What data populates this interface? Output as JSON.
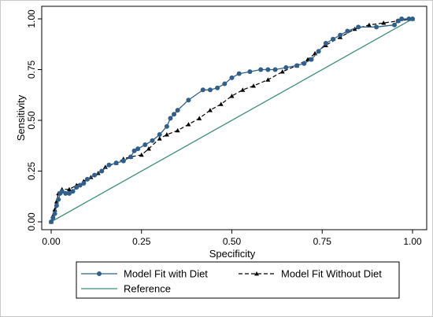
{
  "chart_data": {
    "type": "line",
    "xlabel": "Specificity",
    "ylabel": "Sensitivity",
    "xlim": [
      0,
      1
    ],
    "ylim": [
      0,
      1
    ],
    "x_ticks": [
      "0.00",
      "0.25",
      "0.50",
      "0.75",
      "1.00"
    ],
    "y_ticks": [
      "0.00",
      "0.25",
      "0.50",
      "0.75",
      "1.00"
    ],
    "grid": false,
    "legend_position": "bottom",
    "series": [
      {
        "name": "Model Fit with Diet",
        "color": "#2f5f8a",
        "style": "solid",
        "marker": "circle",
        "points": [
          [
            0.0,
            0.0
          ],
          [
            0.005,
            0.02
          ],
          [
            0.01,
            0.04
          ],
          [
            0.015,
            0.08
          ],
          [
            0.02,
            0.11
          ],
          [
            0.025,
            0.14
          ],
          [
            0.03,
            0.15
          ],
          [
            0.04,
            0.14
          ],
          [
            0.05,
            0.14
          ],
          [
            0.06,
            0.15
          ],
          [
            0.07,
            0.17
          ],
          [
            0.08,
            0.18
          ],
          [
            0.09,
            0.19
          ],
          [
            0.1,
            0.21
          ],
          [
            0.12,
            0.23
          ],
          [
            0.14,
            0.25
          ],
          [
            0.16,
            0.28
          ],
          [
            0.18,
            0.29
          ],
          [
            0.2,
            0.3
          ],
          [
            0.22,
            0.32
          ],
          [
            0.23,
            0.35
          ],
          [
            0.24,
            0.36
          ],
          [
            0.26,
            0.38
          ],
          [
            0.28,
            0.4
          ],
          [
            0.3,
            0.43
          ],
          [
            0.32,
            0.47
          ],
          [
            0.33,
            0.51
          ],
          [
            0.34,
            0.53
          ],
          [
            0.35,
            0.55
          ],
          [
            0.38,
            0.6
          ],
          [
            0.42,
            0.65
          ],
          [
            0.44,
            0.65
          ],
          [
            0.46,
            0.66
          ],
          [
            0.48,
            0.68
          ],
          [
            0.5,
            0.71
          ],
          [
            0.52,
            0.73
          ],
          [
            0.55,
            0.74
          ],
          [
            0.58,
            0.75
          ],
          [
            0.6,
            0.75
          ],
          [
            0.62,
            0.75
          ],
          [
            0.65,
            0.76
          ],
          [
            0.68,
            0.77
          ],
          [
            0.7,
            0.78
          ],
          [
            0.72,
            0.8
          ],
          [
            0.74,
            0.84
          ],
          [
            0.76,
            0.88
          ],
          [
            0.78,
            0.9
          ],
          [
            0.8,
            0.92
          ],
          [
            0.82,
            0.94
          ],
          [
            0.85,
            0.96
          ],
          [
            0.9,
            0.96
          ],
          [
            0.95,
            0.97
          ],
          [
            0.96,
            0.99
          ],
          [
            0.97,
            1.0
          ],
          [
            0.99,
            1.0
          ],
          [
            1.0,
            1.0
          ]
        ]
      },
      {
        "name": "Model Fit Without Diet",
        "color": "#000000",
        "style": "dashed",
        "marker": "triangle",
        "points": [
          [
            0.0,
            0.0
          ],
          [
            0.005,
            0.03
          ],
          [
            0.01,
            0.06
          ],
          [
            0.015,
            0.1
          ],
          [
            0.02,
            0.14
          ],
          [
            0.03,
            0.16
          ],
          [
            0.05,
            0.16
          ],
          [
            0.07,
            0.18
          ],
          [
            0.09,
            0.2
          ],
          [
            0.11,
            0.22
          ],
          [
            0.13,
            0.24
          ],
          [
            0.15,
            0.27
          ],
          [
            0.18,
            0.29
          ],
          [
            0.2,
            0.31
          ],
          [
            0.22,
            0.32
          ],
          [
            0.25,
            0.33
          ],
          [
            0.27,
            0.36
          ],
          [
            0.3,
            0.41
          ],
          [
            0.32,
            0.43
          ],
          [
            0.35,
            0.45
          ],
          [
            0.38,
            0.48
          ],
          [
            0.41,
            0.51
          ],
          [
            0.44,
            0.55
          ],
          [
            0.47,
            0.58
          ],
          [
            0.5,
            0.62
          ],
          [
            0.53,
            0.65
          ],
          [
            0.56,
            0.67
          ],
          [
            0.6,
            0.7
          ],
          [
            0.64,
            0.74
          ],
          [
            0.68,
            0.77
          ],
          [
            0.71,
            0.8
          ],
          [
            0.73,
            0.83
          ],
          [
            0.76,
            0.87
          ],
          [
            0.8,
            0.91
          ],
          [
            0.84,
            0.95
          ],
          [
            0.88,
            0.97
          ],
          [
            0.92,
            0.98
          ],
          [
            0.96,
            0.99
          ],
          [
            1.0,
            1.0
          ]
        ]
      },
      {
        "name": "Reference",
        "color": "#3f8f7a",
        "style": "solid",
        "marker": "none",
        "points": [
          [
            0,
            0
          ],
          [
            1,
            1
          ]
        ]
      }
    ]
  }
}
